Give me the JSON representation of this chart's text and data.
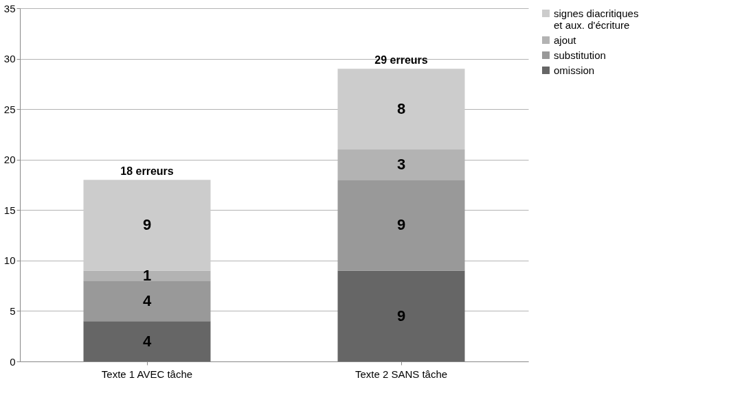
{
  "chart_data": {
    "type": "bar",
    "stacked": true,
    "categories": [
      "Texte 1 AVEC tâche",
      "Texte 2 SANS tâche"
    ],
    "series": [
      {
        "name": "omission",
        "color": "#666666",
        "values": [
          4,
          9
        ]
      },
      {
        "name": "substitution",
        "color": "#999999",
        "values": [
          4,
          9
        ]
      },
      {
        "name": "ajout",
        "color": "#b3b3b3",
        "values": [
          1,
          3
        ]
      },
      {
        "name": "signes diacritiques\net aux. d'écriture",
        "color": "#cccccc",
        "values": [
          9,
          8
        ]
      }
    ],
    "ylim": [
      0,
      35
    ],
    "yticks": [
      0,
      5,
      10,
      15,
      20,
      25,
      30,
      35
    ],
    "grid": "y",
    "legend": "right",
    "data_labels": true,
    "totals": [
      "18 erreurs",
      "29 erreurs"
    ]
  }
}
